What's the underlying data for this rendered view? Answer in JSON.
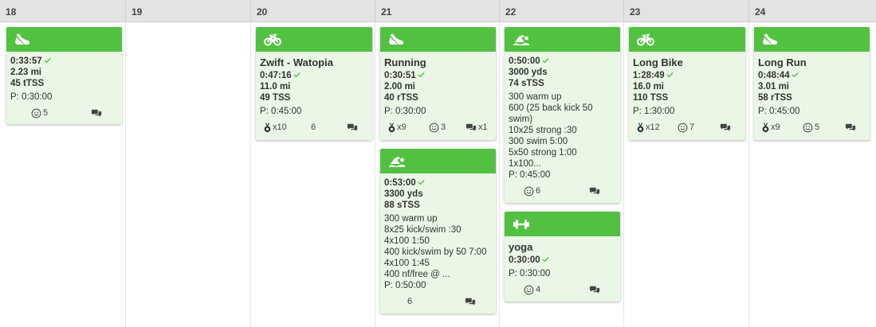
{
  "days": [
    "18",
    "19",
    "20",
    "21",
    "22",
    "23",
    "24"
  ],
  "cards": {
    "d18_run": {
      "duration": "0:33:57",
      "distance": "2.23 mi",
      "tss": "45 tTSS",
      "planned": "P: 0:30:00",
      "smiles": "5"
    },
    "d20_bike": {
      "title": "Zwift - Watopia",
      "duration": "0:47:16",
      "distance": "11.0 mi",
      "tss": "49 TSS",
      "planned": "P: 0:45:00",
      "medals": "x10",
      "smiles": "6"
    },
    "d21_run": {
      "title": "Running",
      "duration": "0:30:51",
      "distance": "2.00 mi",
      "tss": "40 rTSS",
      "planned": "P: 0:30:00",
      "medals": "x9",
      "smiles": "3",
      "comments": "x1"
    },
    "d21_swim": {
      "duration": "0:53:00",
      "distance": "3300 yds",
      "tss": "88 sTSS",
      "desc": [
        "300 warm up",
        "8x25 kick/swim :30",
        "4x100 1:50",
        "400 kick/swim by 50 7:00",
        "4x100 1:45",
        "400 nf/free @ ..."
      ],
      "planned": "P: 0:50:00",
      "smiles": "6"
    },
    "d22_swim": {
      "duration": "0:50:00",
      "distance": "3000 yds",
      "tss": "74 sTSS",
      "desc": [
        "300 warm up",
        "600 (25 back kick 50 swim)",
        "10x25 strong :30",
        "300 swim 5:00",
        "5x50 strong 1:00",
        "1x100..."
      ],
      "planned": "P: 0:45:00",
      "smiles": "6"
    },
    "d22_yoga": {
      "title": "yoga",
      "duration": "0:30:00",
      "planned": "P: 0:30:00",
      "smiles": "4"
    },
    "d23_bike": {
      "title": "Long Bike",
      "duration": "1:28:49",
      "distance": "16.0 mi",
      "tss": "110 TSS",
      "planned": "P: 1:30:00",
      "medals": "x12",
      "smiles": "7"
    },
    "d24_run": {
      "title": "Long Run",
      "duration": "0:48:44",
      "distance": "3.01 mi",
      "tss": "58 rTSS",
      "planned": "P: 0:45:00",
      "medals": "x9",
      "smiles": "5"
    }
  },
  "icons": {
    "run": "running-shoe-icon",
    "bike": "bike-icon",
    "swim": "swim-icon",
    "strength": "dumbbell-icon",
    "smile": "smile-icon",
    "comment": "comment-icon",
    "medal": "medal-icon",
    "check": "checkmark-icon"
  },
  "colors": {
    "accent": "#52c142",
    "card_bg": "#eaf6e6",
    "header_bg": "#e3e3e3"
  }
}
